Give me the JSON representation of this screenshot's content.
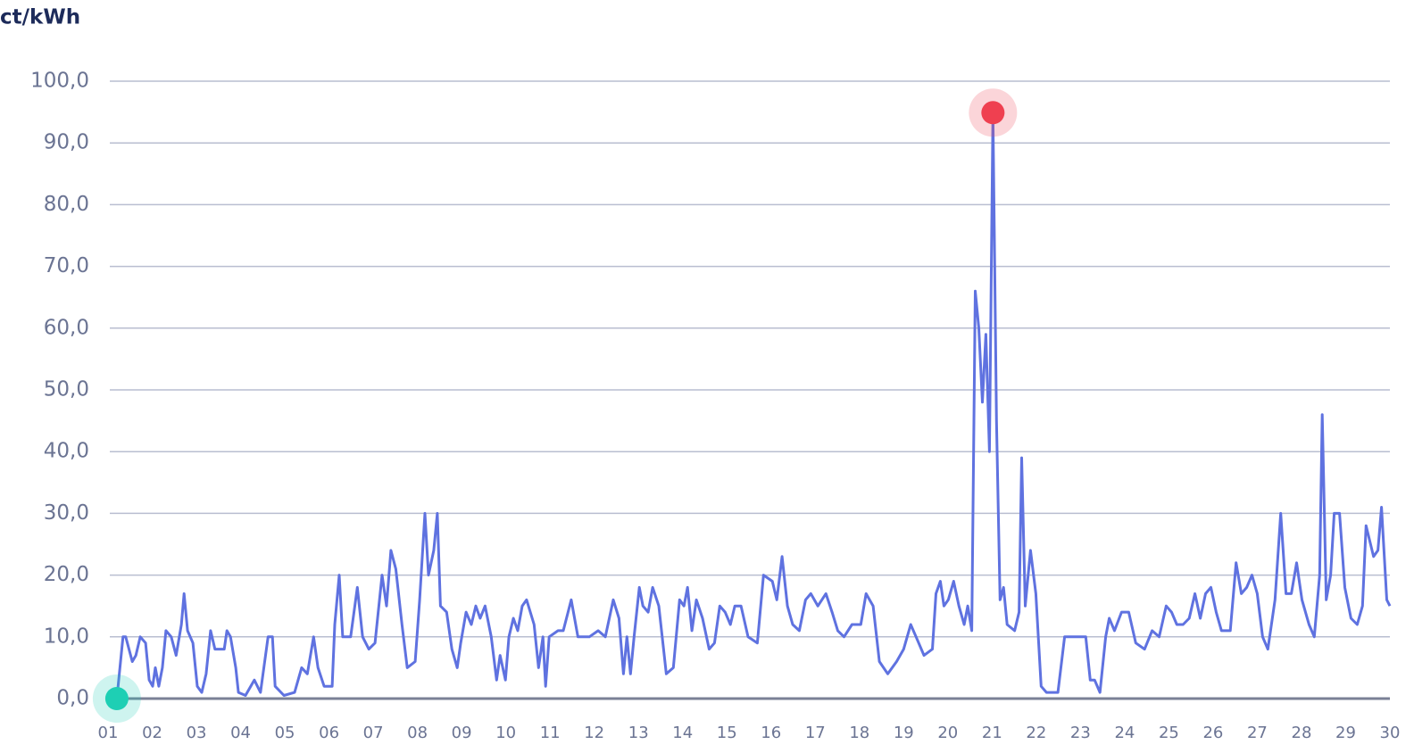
{
  "chart_data": {
    "type": "line",
    "y_label": "ct/kWh",
    "color": "#5f72e0",
    "min_marker_color": "#1ecfb4",
    "max_marker_color": "#ef4050",
    "grid": true,
    "xlim": [
      1,
      30
    ],
    "xticks": [
      {
        "value": 1,
        "label": "01"
      },
      {
        "value": 2,
        "label": "02"
      },
      {
        "value": 3,
        "label": "03"
      },
      {
        "value": 4,
        "label": "04"
      },
      {
        "value": 5,
        "label": "05"
      },
      {
        "value": 6,
        "label": "06"
      },
      {
        "value": 7,
        "label": "07"
      },
      {
        "value": 8,
        "label": "08"
      },
      {
        "value": 9,
        "label": "09"
      },
      10,
      11,
      12,
      13,
      14,
      15,
      16,
      17,
      18,
      19,
      20,
      21,
      22,
      23,
      24,
      25,
      26,
      27,
      28,
      29,
      30
    ],
    "ylim": [
      0,
      100
    ],
    "yticks": [
      {
        "value": 0,
        "label": "0,0"
      },
      {
        "value": 10,
        "label": "10,0"
      },
      {
        "value": 20,
        "label": "20,0"
      },
      {
        "value": 30,
        "label": "30,0"
      },
      {
        "value": 40,
        "label": "40,0"
      },
      {
        "value": 50,
        "label": "50,0"
      },
      {
        "value": 60,
        "label": "60,0"
      },
      {
        "value": 70,
        "label": "70,0"
      },
      {
        "value": 80,
        "label": "80,0"
      },
      {
        "value": 90,
        "label": "90,0"
      },
      {
        "value": 100,
        "label": "100,0"
      }
    ],
    "x": [
      1.2,
      1.34,
      1.4,
      1.55,
      1.63,
      1.73,
      1.85,
      1.93,
      2.01,
      2.07,
      2.15,
      2.23,
      2.31,
      2.43,
      2.54,
      2.66,
      2.72,
      2.8,
      2.92,
      3.02,
      3.12,
      3.22,
      3.32,
      3.42,
      3.53,
      3.63,
      3.69,
      3.77,
      3.89,
      3.95,
      4.11,
      4.31,
      4.45,
      4.62,
      4.72,
      4.78,
      4.98,
      5.22,
      5.38,
      5.51,
      5.65,
      5.75,
      5.89,
      6.07,
      6.13,
      6.23,
      6.31,
      6.49,
      6.64,
      6.76,
      6.9,
      7.04,
      7.2,
      7.3,
      7.4,
      7.51,
      7.65,
      7.77,
      7.95,
      8.05,
      8.17,
      8.25,
      8.37,
      8.45,
      8.52,
      8.66,
      8.78,
      8.9,
      8.98,
      9.1,
      9.22,
      9.32,
      9.42,
      9.53,
      9.67,
      9.79,
      9.87,
      9.99,
      10.07,
      10.17,
      10.27,
      10.37,
      10.47,
      10.64,
      10.74,
      10.84,
      10.9,
      10.98,
      11.18,
      11.3,
      11.48,
      11.63,
      11.73,
      11.89,
      12.09,
      12.25,
      12.43,
      12.56,
      12.66,
      12.74,
      12.82,
      12.9,
      13.02,
      13.1,
      13.22,
      13.32,
      13.46,
      13.63,
      13.79,
      13.93,
      14.03,
      14.11,
      14.21,
      14.31,
      14.45,
      14.6,
      14.72,
      14.84,
      14.96,
      15.08,
      15.18,
      15.32,
      15.48,
      15.69,
      15.83,
      16.03,
      16.13,
      16.25,
      16.37,
      16.49,
      16.64,
      16.78,
      16.9,
      17.06,
      17.24,
      17.38,
      17.51,
      17.65,
      17.83,
      18.03,
      18.15,
      18.31,
      18.45,
      18.64,
      18.84,
      19,
      19.16,
      19.28,
      19.46,
      19.65,
      19.73,
      19.83,
      19.91,
      20.01,
      20.13,
      20.25,
      20.37,
      20.45,
      20.54,
      20.62,
      20.7,
      20.78,
      20.86,
      20.94,
      21.02,
      21.1,
      21.18,
      21.26,
      21.34,
      21.51,
      21.61,
      21.67,
      21.75,
      21.87,
      21.99,
      22.11,
      22.23,
      22.49,
      22.64,
      22.8,
      23,
      23.12,
      23.22,
      23.32,
      23.44,
      23.57,
      23.65,
      23.77,
      23.93,
      24.09,
      24.25,
      24.45,
      24.62,
      24.78,
      24.94,
      25.06,
      25.18,
      25.32,
      25.46,
      25.59,
      25.71,
      25.83,
      25.95,
      26.07,
      26.19,
      26.39,
      26.52,
      26.64,
      26.76,
      26.88,
      27,
      27.12,
      27.24,
      27.4,
      27.53,
      27.65,
      27.77,
      27.89,
      28.01,
      28.17,
      28.29,
      28.41,
      28.47,
      28.56,
      28.66,
      28.74,
      28.86,
      28.98,
      29.12,
      29.26,
      29.38,
      29.46,
      29.63,
      29.73,
      29.81,
      29.93,
      30
    ],
    "values": [
      0,
      10,
      10,
      6,
      7,
      10,
      9,
      3,
      2,
      5,
      2,
      5,
      11,
      10,
      7,
      12,
      17,
      11,
      9,
      2,
      1,
      4,
      11,
      8,
      8,
      8,
      11,
      10,
      5,
      1,
      0.5,
      3,
      1,
      10,
      10,
      2,
      0.5,
      1,
      5,
      4,
      10,
      5,
      2,
      2,
      12,
      20,
      10,
      10,
      18,
      10,
      8,
      9,
      20,
      15,
      24,
      21,
      12,
      5,
      6,
      16,
      30,
      20,
      24,
      30,
      15,
      14,
      8,
      5,
      9,
      14,
      12,
      15,
      13,
      15,
      10,
      3,
      7,
      3,
      10,
      13,
      11,
      15,
      16,
      12,
      5,
      10,
      2,
      10,
      11,
      11,
      16,
      10,
      10,
      10,
      11,
      10,
      16,
      13,
      4,
      10,
      4,
      10,
      18,
      15,
      14,
      18,
      15,
      4,
      5,
      16,
      15,
      18,
      11,
      16,
      13,
      8,
      9,
      15,
      14,
      12,
      15,
      15,
      10,
      9,
      20,
      19,
      16,
      23,
      15,
      12,
      11,
      16,
      17,
      15,
      17,
      14,
      11,
      10,
      12,
      12,
      17,
      15,
      6,
      4,
      6,
      8,
      12,
      10,
      7,
      8,
      17,
      19,
      15,
      16,
      19,
      15,
      12,
      15,
      11,
      66,
      60,
      48,
      59,
      40,
      94.9,
      45,
      16,
      18,
      12,
      11,
      14,
      39,
      15,
      24,
      17,
      2,
      1,
      1,
      10,
      10,
      10,
      10,
      3,
      3,
      1,
      10,
      13,
      11,
      14,
      14,
      9,
      8,
      11,
      10,
      15,
      14,
      12,
      12,
      13,
      17,
      13,
      17,
      18,
      14,
      11,
      11,
      22,
      17,
      18,
      20,
      17,
      10,
      8,
      16,
      30,
      17,
      17,
      22,
      16,
      12,
      10,
      20,
      46,
      16,
      20,
      30,
      30,
      18,
      13,
      12,
      15,
      28,
      23,
      24,
      31,
      16,
      15
    ]
  }
}
